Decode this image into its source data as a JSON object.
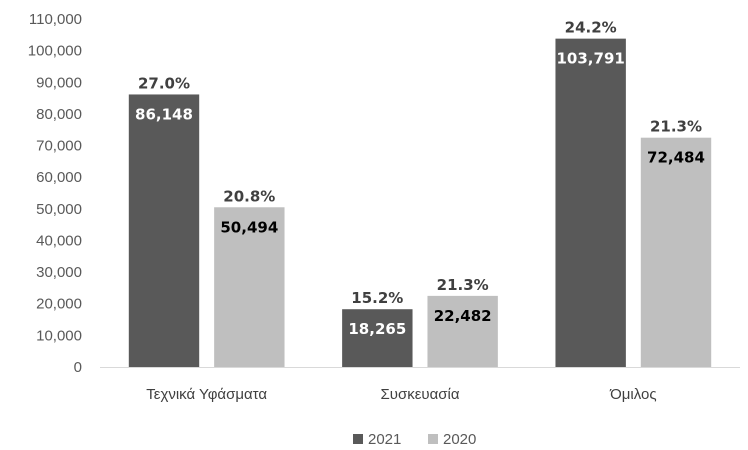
{
  "chart_data": {
    "type": "bar",
    "categories": [
      "Τεχνικά Υφάσματα",
      "Συσκευασία",
      "Όμιλος"
    ],
    "series": [
      {
        "name": "2021",
        "values": [
          86148,
          18265,
          103791
        ],
        "value_labels": [
          "86,148",
          "18,265",
          "103,791"
        ],
        "pct_labels": [
          "27.0%",
          "15.2%",
          "24.2%"
        ],
        "color": "#595959",
        "label_color": "#ffffff"
      },
      {
        "name": "2020",
        "values": [
          50494,
          22482,
          72484
        ],
        "value_labels": [
          "50,494",
          "22,482",
          "72,484"
        ],
        "pct_labels": [
          "20.8%",
          "21.3%",
          "21.3%"
        ],
        "color": "#bfbfbf",
        "label_color": "#000000"
      }
    ],
    "ylim": [
      0,
      110000
    ],
    "y_ticks": [
      "0",
      "10,000",
      "20,000",
      "30,000",
      "40,000",
      "50,000",
      "60,000",
      "70,000",
      "80,000",
      "90,000",
      "100,000",
      "110,000"
    ],
    "grid": false,
    "legend_position": "bottom",
    "axis_color": "#d9d9d9"
  }
}
